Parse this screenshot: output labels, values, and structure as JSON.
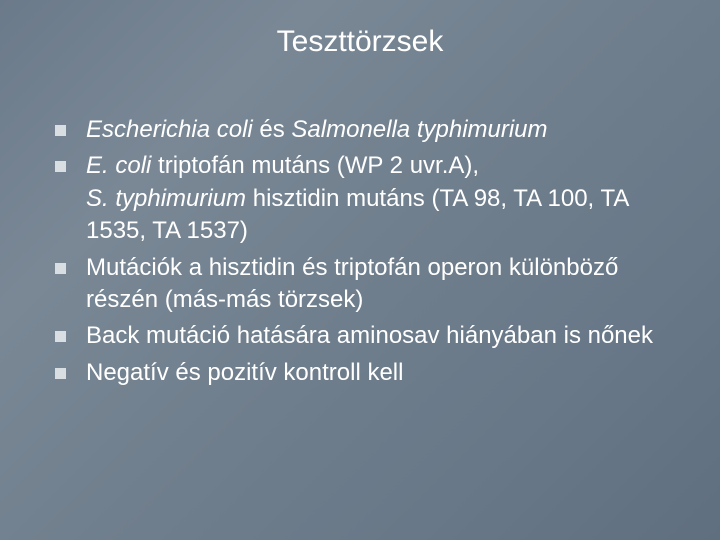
{
  "slide": {
    "title": "Teszttörzsek",
    "bullets": [
      {
        "segments": [
          {
            "text": "Escherichia coli ",
            "italic": true
          },
          {
            "text": "és ",
            "italic": false
          },
          {
            "text": "Salmonella typhimurium",
            "italic": true
          }
        ]
      },
      {
        "segments": [
          {
            "text": "E. coli ",
            "italic": true
          },
          {
            "text": "triptofán mutáns (WP 2 uvr.A), ",
            "italic": false
          },
          {
            "text": "S. typhimurium ",
            "italic": true
          },
          {
            "text": "hisztidin mutáns (TA 98, TA 100, TA 1535, TA 1537)",
            "italic": false
          }
        ]
      },
      {
        "segments": [
          {
            "text": "Mutációk a hisztidin és triptofán operon különböző részén (más-más törzsek)",
            "italic": false
          }
        ]
      },
      {
        "segments": [
          {
            "text": "Back mutáció hatására aminosav hiányában is nőnek",
            "italic": false
          }
        ]
      },
      {
        "segments": [
          {
            "text": "Negatív és pozitív kontroll kell",
            "italic": false
          }
        ]
      }
    ]
  },
  "style": {
    "title_fontsize": 30,
    "bullet_fontsize": 24,
    "text_color": "#ffffff",
    "bullet_color": "#d9dee3",
    "bullet_size": 11,
    "background_gradient": [
      "#6b7a8a",
      "#7a8896",
      "#707f8d",
      "#687888",
      "#606f80"
    ]
  }
}
